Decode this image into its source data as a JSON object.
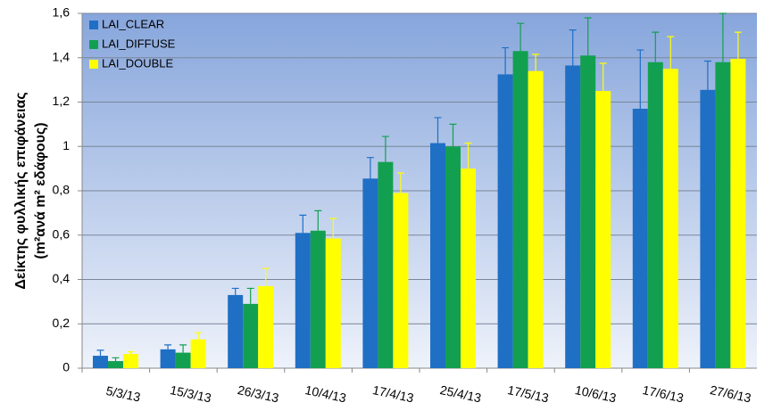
{
  "chart_data": {
    "type": "bar",
    "y_label_lines": [
      "Δείκτης φυλλικής επιφάνειας",
      "(m²ανά m² εδάφους)"
    ],
    "categories": [
      "5/3/13",
      "15/3/13",
      "26/3/13",
      "10/4/13",
      "17/4/13",
      "25/4/13",
      "17/5/13",
      "10/6/13",
      "17/6/13",
      "27/6/13"
    ],
    "series": [
      {
        "name": "LAI_CLEAR",
        "color": "#1f6fc5",
        "values": [
          0.056,
          0.085,
          0.33,
          0.61,
          0.855,
          1.015,
          1.325,
          1.365,
          1.17,
          1.255
        ],
        "errors": [
          0.025,
          0.02,
          0.03,
          0.08,
          0.095,
          0.115,
          0.12,
          0.16,
          0.265,
          0.13
        ]
      },
      {
        "name": "LAI_DIFFUSE",
        "color": "#12a050",
        "values": [
          0.032,
          0.07,
          0.29,
          0.62,
          0.93,
          1.0,
          1.43,
          1.41,
          1.38,
          1.38
        ],
        "errors": [
          0.015,
          0.035,
          0.07,
          0.09,
          0.115,
          0.1,
          0.125,
          0.17,
          0.135,
          0.22
        ]
      },
      {
        "name": "LAI_DOUBLE",
        "color": "#ffff00",
        "values": [
          0.064,
          0.13,
          0.37,
          0.585,
          0.79,
          0.9,
          1.34,
          1.25,
          1.35,
          1.395
        ],
        "errors": [
          0.01,
          0.03,
          0.08,
          0.09,
          0.09,
          0.115,
          0.075,
          0.125,
          0.145,
          0.12
        ]
      }
    ],
    "ylim": [
      0,
      1.6
    ],
    "yticks": [
      0,
      {
        "value": 0.2,
        "label": "0,2"
      },
      {
        "value": 0.4,
        "label": "0,4"
      },
      {
        "value": 0.6,
        "label": "0,6"
      },
      {
        "value": 0.8,
        "label": "0,8"
      },
      1,
      {
        "value": 1.2,
        "label": "1,2"
      },
      {
        "value": 1.4,
        "label": "1,4"
      },
      {
        "value": 1.6,
        "label": "1,6"
      }
    ],
    "grid": true,
    "legend": "top-left"
  }
}
